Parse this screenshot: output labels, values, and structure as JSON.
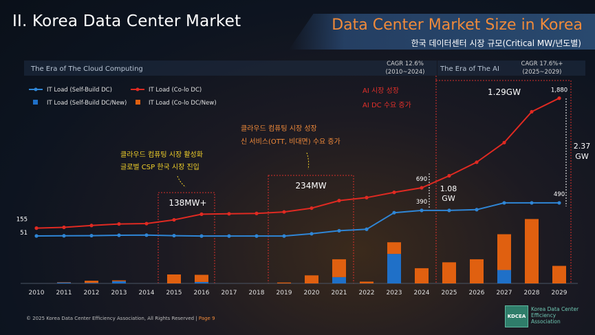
{
  "slide": {
    "title": "II. Korea Data Center Market",
    "banner_title": "Data Center Market Size in Korea",
    "banner_subtitle": "한국 데이터센터 시장 규모(Critical MW/년도별)"
  },
  "eras": {
    "cloud_label": "The Era of The Cloud Computing",
    "ai_label": "The Era of The AI",
    "cagr1_line1": "CAGR 12.6%",
    "cagr1_line2": "(2010~2024)",
    "cagr2_line1": "CAGR 17.6%+",
    "cagr2_line2": "(2025~2029)"
  },
  "annotations": {
    "box1_label": "138MW+",
    "box2_label": "234MW",
    "box3_label": "1.29GW",
    "gap1_line1": "1.08",
    "gap1_line2": "GW",
    "gap2_line1": "2.37",
    "gap2_line2": "GW",
    "note_yellow": [
      "클라우드 컴퓨팅 시장 활성화",
      "글로벌 CSP 한국 시장 진입"
    ],
    "note_orange": [
      "클라우드 컴퓨팅 시장 성장",
      "신 서비스(OTT, 비대면) 수요 증가"
    ],
    "note_red": [
      "AI 시장 성장",
      "AI DC 수요 증가"
    ]
  },
  "chart_data": {
    "type": "line",
    "categories": [
      "2010",
      "2011",
      "2012",
      "2013",
      "2014",
      "2015",
      "2016",
      "2017",
      "2018",
      "2019",
      "2020",
      "2021",
      "2022",
      "2023",
      "2024",
      "2025",
      "2026",
      "2027",
      "2028",
      "2029"
    ],
    "series": [
      {
        "name": "IT Load (Self-Build DC)",
        "kind": "line",
        "color": "#2f86d6",
        "values": [
          51,
          53,
          55,
          60,
          62,
          55,
          50,
          50,
          50,
          50,
          80,
          120,
          140,
          360,
          390,
          390,
          400,
          490,
          490,
          490
        ]
      },
      {
        "name": "IT Load (Co-lo DC)",
        "kind": "line",
        "color": "#e02a22",
        "values": [
          155,
          165,
          190,
          210,
          215,
          265,
          340,
          345,
          350,
          370,
          420,
          520,
          560,
          630,
          690,
          850,
          1030,
          1290,
          1700,
          1880
        ]
      },
      {
        "name": "IT Load (Self-Build DC/New)",
        "kind": "bar",
        "color": "#1f70c8",
        "values": [
          0,
          5,
          3,
          12,
          0,
          0,
          8,
          0,
          0,
          0,
          0,
          35,
          0,
          165,
          0,
          0,
          0,
          75,
          0,
          0
        ]
      },
      {
        "name": "IT Load (Co-lo DC/New)",
        "kind": "bar",
        "color": "#e06010",
        "values": [
          0,
          2,
          12,
          5,
          0,
          50,
          40,
          0,
          0,
          5,
          45,
          100,
          10,
          65,
          85,
          118,
          135,
          200,
          360,
          98
        ]
      }
    ],
    "point_labels": {
      "self_2010": "51",
      "colo_2010": "155",
      "colo_2024": "690",
      "self_2024": "390",
      "colo_2029": "1,880",
      "self_2029": "490"
    },
    "legend_position": "top-left",
    "grid": false
  },
  "footer": {
    "copyright": "© 2025 Korea Data Center Efficiency Association, All Rights Reserved  |  ",
    "page": "Page 9",
    "logo_abbr": "KDCEA",
    "logo_name": "Korea Data Center Efficiency Association"
  }
}
